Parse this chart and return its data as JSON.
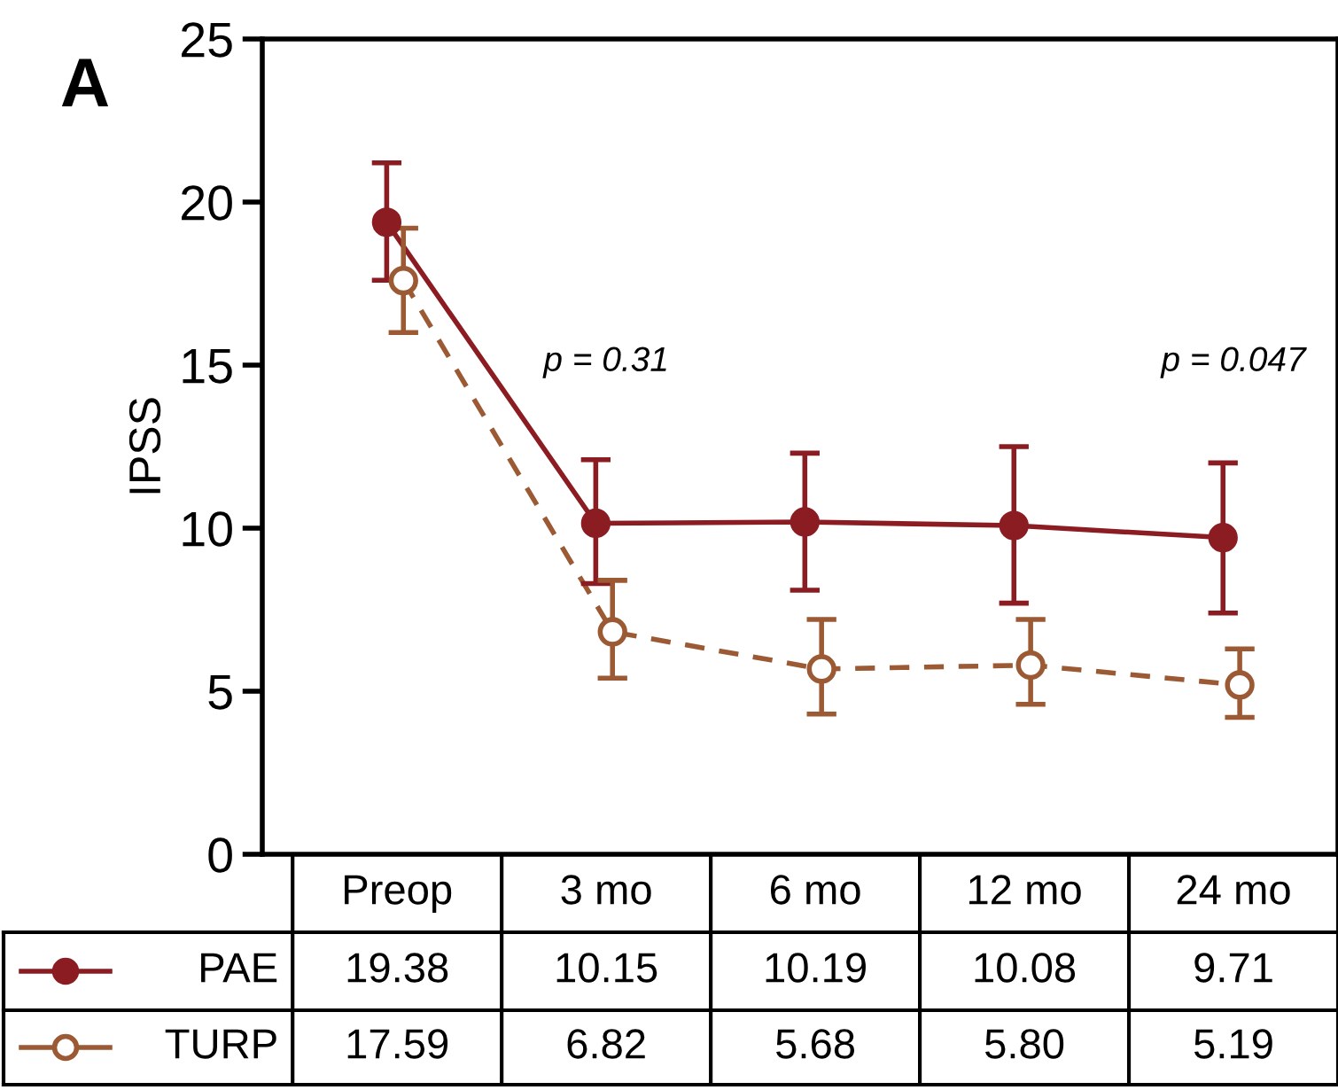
{
  "chart_data": {
    "type": "line",
    "title": "A",
    "ylabel": "IPSS",
    "categories": [
      "Preop",
      "3 mo",
      "6 mo",
      "12 mo",
      "24 mo"
    ],
    "series": [
      {
        "name": "PAE",
        "color": "#8b1c22",
        "marker": "circle",
        "line_style": "solid",
        "values": [
          19.38,
          10.15,
          10.19,
          10.08,
          9.71
        ],
        "errors": [
          [
            17.6,
            21.2
          ],
          [
            8.3,
            12.1
          ],
          [
            8.1,
            12.3
          ],
          [
            7.7,
            12.5
          ],
          [
            7.4,
            12.0
          ]
        ],
        "value_labels": [
          "19.38",
          "10.15",
          "10.19",
          "10.08",
          "9.71"
        ]
      },
      {
        "name": "TURP",
        "color": "#9c5a34",
        "marker": "open circle",
        "line_style": "dashed",
        "values": [
          17.59,
          6.82,
          5.68,
          5.8,
          5.19
        ],
        "errors": [
          [
            16.0,
            19.2
          ],
          [
            5.4,
            8.4
          ],
          [
            4.3,
            7.2
          ],
          [
            4.6,
            7.2
          ],
          [
            4.2,
            6.3
          ]
        ],
        "value_labels": [
          "17.59",
          "6.82",
          "5.68",
          "5.80",
          "5.19"
        ]
      }
    ],
    "ylim": [
      0,
      25
    ],
    "yticks": [
      0,
      5,
      10,
      15,
      20,
      25
    ],
    "grid": false,
    "legend": "bottom",
    "annotations": [
      "p = 0.31",
      "p = 0.047"
    ]
  }
}
